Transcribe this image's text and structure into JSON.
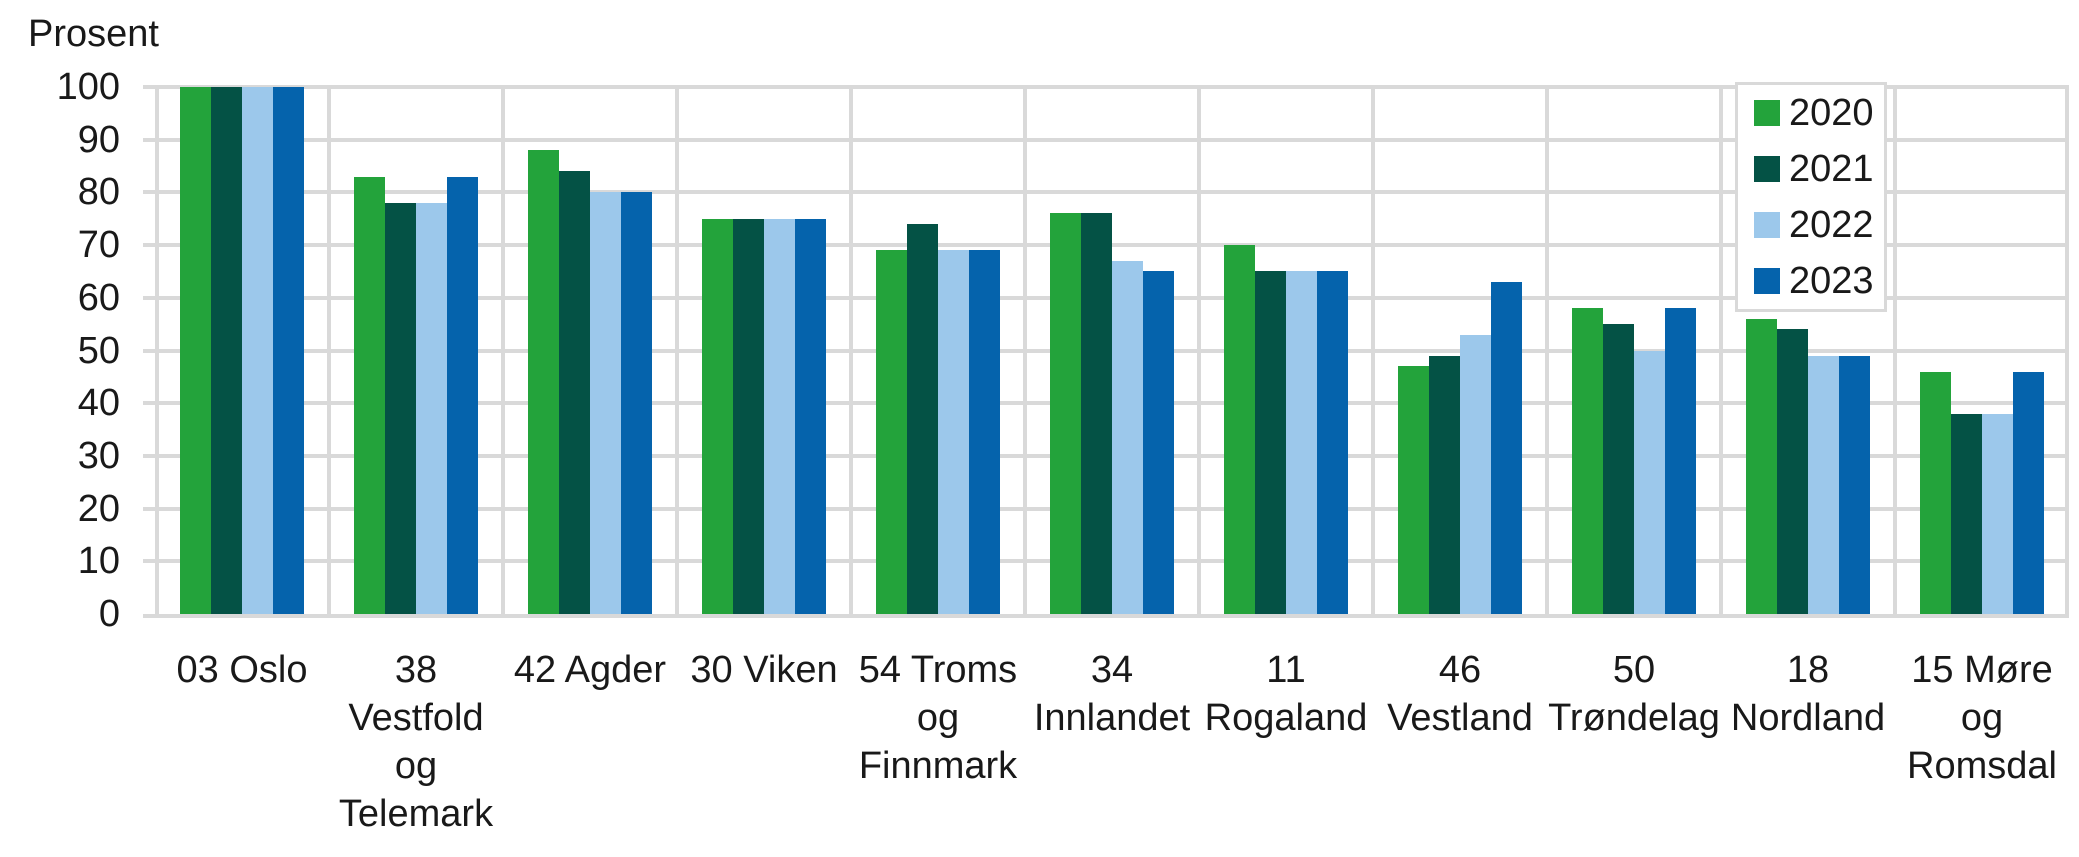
{
  "chart_data": {
    "type": "bar",
    "title": "",
    "ylabel": "Prosent",
    "xlabel": "",
    "ylim": [
      0,
      100
    ],
    "yticks": [
      0,
      10,
      20,
      30,
      40,
      50,
      60,
      70,
      80,
      90,
      100
    ],
    "grid": true,
    "legend_position": "top-right",
    "categories": [
      {
        "label": "03 Oslo",
        "lines": [
          "03 Oslo"
        ]
      },
      {
        "label": "38 Vestfold og Telemark",
        "lines": [
          "38",
          "Vestfold",
          "og",
          "Telemark"
        ]
      },
      {
        "label": "42 Agder",
        "lines": [
          "42 Agder"
        ]
      },
      {
        "label": "30 Viken",
        "lines": [
          "30 Viken"
        ]
      },
      {
        "label": "54 Troms og Finnmark",
        "lines": [
          "54 Troms",
          "og",
          "Finnmark"
        ]
      },
      {
        "label": "34 Innlandet",
        "lines": [
          "34",
          "Innlandet"
        ]
      },
      {
        "label": "11 Rogaland",
        "lines": [
          "11",
          "Rogaland"
        ]
      },
      {
        "label": "46 Vestland",
        "lines": [
          "46",
          "Vestland"
        ]
      },
      {
        "label": "50 Trøndelag",
        "lines": [
          "50",
          "Trøndelag"
        ]
      },
      {
        "label": "18 Nordland",
        "lines": [
          "18",
          "Nordland"
        ]
      },
      {
        "label": "15 Møre og Romsdal",
        "lines": [
          "15 Møre",
          "og",
          "Romsdal"
        ]
      }
    ],
    "series": [
      {
        "name": "2020",
        "color": "#23A33B",
        "values": [
          100,
          83,
          88,
          75,
          69,
          76,
          70,
          47,
          58,
          56,
          46
        ]
      },
      {
        "name": "2021",
        "color": "#045245",
        "values": [
          100,
          78,
          84,
          75,
          74,
          76,
          65,
          49,
          55,
          54,
          38
        ]
      },
      {
        "name": "2022",
        "color": "#9CC8EB",
        "values": [
          100,
          78,
          80,
          75,
          69,
          67,
          65,
          53,
          50,
          49,
          38
        ]
      },
      {
        "name": "2023",
        "color": "#0563AC",
        "values": [
          100,
          83,
          80,
          75,
          69,
          65,
          65,
          63,
          58,
          49,
          46
        ]
      }
    ]
  },
  "colors": {
    "gridline": "#D9D9D9",
    "axis_line": "#D9D9D9",
    "legend_border": "#D9D9D9",
    "text": "#191919",
    "background": "#FFFFFF"
  }
}
